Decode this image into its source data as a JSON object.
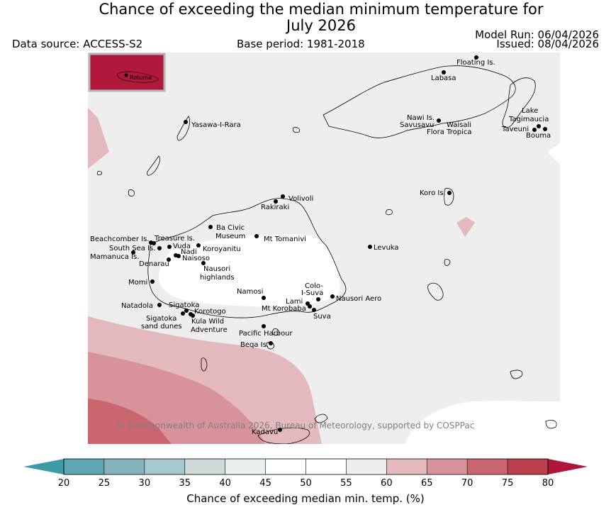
{
  "title_line1": "Chance of exceeding the median minimum temperature for",
  "title_line2": "July 2026",
  "data_source": "Data source: ACCESS-S2",
  "base_period": "Base period: 1981-2018",
  "model_run": "Model Run: 06/04/2026",
  "issued": "Issued: 08/04/2026",
  "inset_label": "Rotuma",
  "copyright": "© Commonwealth of Australia 2026, Bureau of Meteorology, supported by COSPPac",
  "colorbar": {
    "label": "Chance of exceeding median min. temp. (%)",
    "ticks": [
      "20",
      "25",
      "30",
      "35",
      "40",
      "45",
      "50",
      "55",
      "60",
      "65",
      "70",
      "75",
      "80"
    ],
    "colors": [
      "#5fa5b2",
      "#85b4bf",
      "#a7c8cc",
      "#cfd9d9",
      "#e9f0f0",
      "#ffffff",
      "#ffffff",
      "#eeeeee",
      "#e3b9bd",
      "#d8939a",
      "#ca6670",
      "#bc404e"
    ],
    "low_color": "#3f9aa8",
    "high_color": "#b0163a"
  },
  "places": [
    {
      "name": "Floating Is."
    },
    {
      "name": "Labasa"
    },
    {
      "name": "Yasawa-I-Rara"
    },
    {
      "name": "Nawi Is."
    },
    {
      "name": "Savusavu"
    },
    {
      "name": "Waisali"
    },
    {
      "name": "Flora Tropica"
    },
    {
      "name": "Lake"
    },
    {
      "name": "Tagimaucia"
    },
    {
      "name": "Taveuni"
    },
    {
      "name": "Bouma"
    },
    {
      "name": "Koro Is."
    },
    {
      "name": "Volivoli"
    },
    {
      "name": "Rakiraki"
    },
    {
      "name": "Ba Civic"
    },
    {
      "name": "Museum"
    },
    {
      "name": "Mt Tomanivi"
    },
    {
      "name": "Beachcomber Is."
    },
    {
      "name": "Treasure Is."
    },
    {
      "name": "South Sea Is."
    },
    {
      "name": "Vuda"
    },
    {
      "name": "Koroyanitu"
    },
    {
      "name": "Nadi"
    },
    {
      "name": "Mamanuca Is."
    },
    {
      "name": "Naisoso"
    },
    {
      "name": "Denarau"
    },
    {
      "name": "Nausori"
    },
    {
      "name": "highlands"
    },
    {
      "name": "Levuka"
    },
    {
      "name": "Momi"
    },
    {
      "name": "Namosi"
    },
    {
      "name": "Colo-"
    },
    {
      "name": "I-Suva"
    },
    {
      "name": "Lami"
    },
    {
      "name": "Nausori Aero"
    },
    {
      "name": "Mt Korobaba"
    },
    {
      "name": "Natadola"
    },
    {
      "name": "Sigatoka"
    },
    {
      "name": "Korotogo"
    },
    {
      "name": "Suva"
    },
    {
      "name": "Sigatoka"
    },
    {
      "name": "sand dunes"
    },
    {
      "name": "Kula Wild"
    },
    {
      "name": "Adventure"
    },
    {
      "name": "Pacific Harbour"
    },
    {
      "name": "Beqa Is."
    },
    {
      "name": "Kadavu"
    }
  ]
}
